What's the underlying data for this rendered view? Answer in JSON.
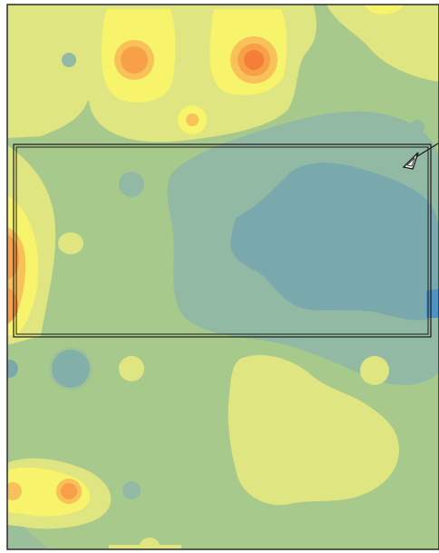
{
  "map": {
    "colors": {
      "background": "#a8c98c",
      "light_yellow": "#dfe580",
      "yellow": "#f7f36a",
      "orange_light": "#f9c15a",
      "orange": "#f7a048",
      "red_orange": "#f47d3a",
      "teal_light": "#91b9a3",
      "teal": "#7aa9ad",
      "blue": "#5f9fbc",
      "blue_dark": "#4f93c4",
      "outline": "#1a1a1a"
    },
    "icons": {
      "cursor": "cursor-arrow-icon"
    }
  }
}
